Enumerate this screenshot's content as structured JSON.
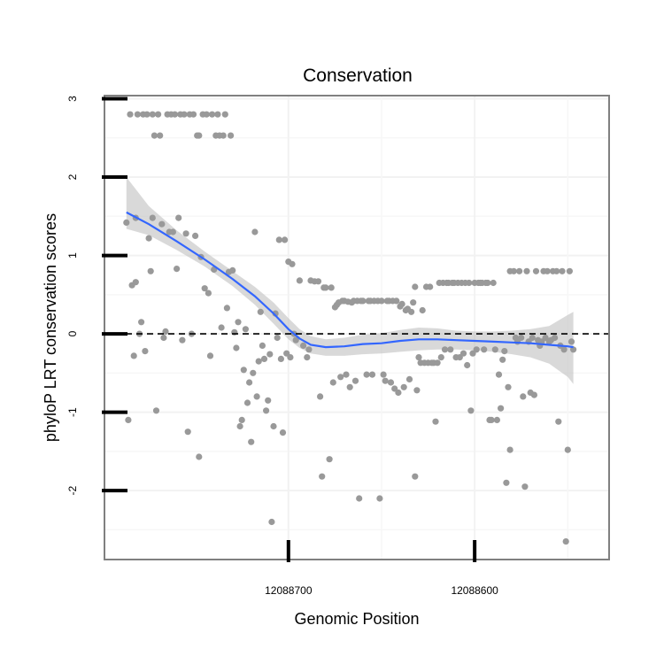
{
  "chart_data": {
    "type": "scatter",
    "title": "Conservation",
    "xlabel": "Genomic Position",
    "ylabel": "phyloP LRT conservation scores",
    "x_reversed": true,
    "xlim": [
      12088798.8,
      12088527.8
    ],
    "ylim": [
      -2.88,
      3.04
    ],
    "x_ticks": [
      12088700,
      12088600
    ],
    "x_tick_labels": [
      "12088700",
      "12088600"
    ],
    "y_ticks": [
      -2,
      -1,
      0,
      1,
      2,
      3
    ],
    "y_tick_labels": [
      "-2",
      "-1",
      "0",
      "1",
      "2",
      "3"
    ],
    "reference_line": {
      "y": 0,
      "style": "dashed"
    },
    "series": [
      {
        "name": "scores",
        "kind": "points",
        "points": [
          [
            12088787,
            1.42
          ],
          [
            12088786,
            -1.1
          ],
          [
            12088785,
            2.8
          ],
          [
            12088784,
            0.62
          ],
          [
            12088783,
            -0.28
          ],
          [
            12088782,
            0.66
          ],
          [
            12088782,
            1.48
          ],
          [
            12088781,
            2.8
          ],
          [
            12088780,
            0.0
          ],
          [
            12088779,
            0.15
          ],
          [
            12088778,
            2.8
          ],
          [
            12088777,
            -0.22
          ],
          [
            12088776,
            2.8
          ],
          [
            12088775,
            1.22
          ],
          [
            12088774,
            0.8
          ],
          [
            12088773,
            2.8
          ],
          [
            12088773,
            1.48
          ],
          [
            12088772,
            2.53
          ],
          [
            12088771,
            -0.98
          ],
          [
            12088770,
            2.8
          ],
          [
            12088769,
            2.53
          ],
          [
            12088768,
            1.4
          ],
          [
            12088767,
            -0.05
          ],
          [
            12088766,
            0.03
          ],
          [
            12088765,
            2.8
          ],
          [
            12088764,
            1.3
          ],
          [
            12088763,
            2.8
          ],
          [
            12088762,
            1.3
          ],
          [
            12088761,
            2.8
          ],
          [
            12088760,
            0.83
          ],
          [
            12088759,
            1.48
          ],
          [
            12088758,
            2.8
          ],
          [
            12088757,
            -0.08
          ],
          [
            12088756,
            2.8
          ],
          [
            12088755,
            1.28
          ],
          [
            12088754,
            -1.25
          ],
          [
            12088753,
            2.8
          ],
          [
            12088752,
            0.0
          ],
          [
            12088751,
            2.8
          ],
          [
            12088750,
            1.25
          ],
          [
            12088749,
            2.53
          ],
          [
            12088748,
            -1.57
          ],
          [
            12088748,
            2.53
          ],
          [
            12088747,
            0.98
          ],
          [
            12088746,
            2.8
          ],
          [
            12088745,
            0.58
          ],
          [
            12088744,
            2.8
          ],
          [
            12088743,
            0.52
          ],
          [
            12088742,
            -0.28
          ],
          [
            12088741,
            2.8
          ],
          [
            12088740,
            0.82
          ],
          [
            12088739,
            2.53
          ],
          [
            12088738,
            2.8
          ],
          [
            12088737,
            2.53
          ],
          [
            12088736,
            0.08
          ],
          [
            12088735,
            2.53
          ],
          [
            12088734,
            2.8
          ],
          [
            12088733,
            0.33
          ],
          [
            12088732,
            0.79
          ],
          [
            12088731,
            2.53
          ],
          [
            12088730,
            0.81
          ],
          [
            12088729,
            0.02
          ],
          [
            12088728,
            -0.18
          ],
          [
            12088727,
            0.15
          ],
          [
            12088726,
            -1.18
          ],
          [
            12088725,
            -1.1
          ],
          [
            12088724,
            -0.46
          ],
          [
            12088723,
            0.06
          ],
          [
            12088722,
            -0.88
          ],
          [
            12088721,
            -0.62
          ],
          [
            12088720,
            -1.38
          ],
          [
            12088719,
            -0.5
          ],
          [
            12088718,
            1.3
          ],
          [
            12088717,
            -0.8
          ],
          [
            12088716,
            -0.35
          ],
          [
            12088715,
            0.28
          ],
          [
            12088714,
            -0.15
          ],
          [
            12088713,
            -0.32
          ],
          [
            12088712,
            -0.98
          ],
          [
            12088711,
            -0.85
          ],
          [
            12088710,
            -0.26
          ],
          [
            12088709,
            -2.4
          ],
          [
            12088708,
            -1.18
          ],
          [
            12088707,
            0.26
          ],
          [
            12088706,
            -0.05
          ],
          [
            12088705,
            1.2
          ],
          [
            12088704,
            -0.32
          ],
          [
            12088703,
            -1.26
          ],
          [
            12088702,
            1.2
          ],
          [
            12088701,
            -0.25
          ],
          [
            12088700,
            0.92
          ],
          [
            12088699,
            -0.3
          ],
          [
            12088698,
            0.89
          ],
          [
            12088697,
            0.0
          ],
          [
            12088696,
            -0.08
          ],
          [
            12088694,
            0.68
          ],
          [
            12088692,
            -0.15
          ],
          [
            12088690,
            -0.3
          ],
          [
            12088689,
            -0.2
          ],
          [
            12088688,
            0.68
          ],
          [
            12088686,
            0.67
          ],
          [
            12088684,
            0.67
          ],
          [
            12088683,
            -0.8
          ],
          [
            12088682,
            -1.82
          ],
          [
            12088681,
            0.59
          ],
          [
            12088680,
            0.59
          ],
          [
            12088678,
            -1.6
          ],
          [
            12088677,
            0.59
          ],
          [
            12088676,
            -0.62
          ],
          [
            12088675,
            0.34
          ],
          [
            12088674,
            0.37
          ],
          [
            12088673,
            0.4
          ],
          [
            12088672,
            -0.55
          ],
          [
            12088671,
            0.42
          ],
          [
            12088670,
            0.42
          ],
          [
            12088669,
            -0.52
          ],
          [
            12088668,
            0.41
          ],
          [
            12088667,
            -0.68
          ],
          [
            12088666,
            0.4
          ],
          [
            12088665,
            0.42
          ],
          [
            12088664,
            -0.6
          ],
          [
            12088663,
            0.42
          ],
          [
            12088662,
            -2.1
          ],
          [
            12088661,
            0.42
          ],
          [
            12088660,
            0.42
          ],
          [
            12088658,
            -0.52
          ],
          [
            12088657,
            0.42
          ],
          [
            12088656,
            0.42
          ],
          [
            12088655,
            -0.52
          ],
          [
            12088654,
            0.42
          ],
          [
            12088652,
            0.42
          ],
          [
            12088651,
            -2.1
          ],
          [
            12088650,
            0.42
          ],
          [
            12088649,
            -0.52
          ],
          [
            12088648,
            -0.6
          ],
          [
            12088647,
            0.42
          ],
          [
            12088646,
            0.42
          ],
          [
            12088645,
            -0.62
          ],
          [
            12088644,
            0.42
          ],
          [
            12088643,
            -0.7
          ],
          [
            12088642,
            0.42
          ],
          [
            12088641,
            -0.75
          ],
          [
            12088640,
            0.35
          ],
          [
            12088639,
            0.38
          ],
          [
            12088638,
            -0.68
          ],
          [
            12088637,
            0.3
          ],
          [
            12088636,
            0.32
          ],
          [
            12088635,
            -0.58
          ],
          [
            12088634,
            0.28
          ],
          [
            12088633,
            0.4
          ],
          [
            12088632,
            -1.82
          ],
          [
            12088632,
            0.6
          ],
          [
            12088631,
            -0.72
          ],
          [
            12088630,
            -0.3
          ],
          [
            12088629,
            -0.37
          ],
          [
            12088628,
            0.3
          ],
          [
            12088627,
            -0.37
          ],
          [
            12088626,
            0.6
          ],
          [
            12088625,
            -0.37
          ],
          [
            12088624,
            0.6
          ],
          [
            12088623,
            -0.37
          ],
          [
            12088622,
            -0.37
          ],
          [
            12088621,
            -1.12
          ],
          [
            12088620,
            -0.37
          ],
          [
            12088619,
            0.65
          ],
          [
            12088618,
            -0.3
          ],
          [
            12088617,
            0.65
          ],
          [
            12088616,
            -0.2
          ],
          [
            12088615,
            0.65
          ],
          [
            12088614,
            0.65
          ],
          [
            12088613,
            -0.2
          ],
          [
            12088612,
            0.65
          ],
          [
            12088611,
            0.65
          ],
          [
            12088610,
            -0.3
          ],
          [
            12088609,
            0.65
          ],
          [
            12088608,
            -0.3
          ],
          [
            12088607,
            0.65
          ],
          [
            12088606,
            -0.25
          ],
          [
            12088605,
            0.65
          ],
          [
            12088604,
            -0.4
          ],
          [
            12088603,
            0.65
          ],
          [
            12088602,
            -0.98
          ],
          [
            12088601,
            -0.25
          ],
          [
            12088600,
            0.65
          ],
          [
            12088599,
            -0.2
          ],
          [
            12088598,
            0.65
          ],
          [
            12088597,
            0.65
          ],
          [
            12088596,
            0.65
          ],
          [
            12088595,
            -0.2
          ],
          [
            12088594,
            0.65
          ],
          [
            12088593,
            0.65
          ],
          [
            12088592,
            -1.1
          ],
          [
            12088591,
            -1.1
          ],
          [
            12088590,
            0.65
          ],
          [
            12088589,
            -0.2
          ],
          [
            12088588,
            -1.1
          ],
          [
            12088587,
            -0.52
          ],
          [
            12088586,
            -0.95
          ],
          [
            12088585,
            -0.33
          ],
          [
            12088584,
            -0.22
          ],
          [
            12088583,
            -1.9
          ],
          [
            12088582,
            -0.68
          ],
          [
            12088581,
            0.8
          ],
          [
            12088581,
            -1.48
          ],
          [
            12088579,
            0.8
          ],
          [
            12088578,
            -0.05
          ],
          [
            12088577,
            -0.1
          ],
          [
            12088576,
            0.8
          ],
          [
            12088575,
            -0.05
          ],
          [
            12088574,
            -0.8
          ],
          [
            12088573,
            -1.95
          ],
          [
            12088572,
            0.8
          ],
          [
            12088571,
            -0.1
          ],
          [
            12088570,
            -0.75
          ],
          [
            12088569,
            -0.05
          ],
          [
            12088568,
            -0.78
          ],
          [
            12088567,
            0.8
          ],
          [
            12088566,
            -0.08
          ],
          [
            12088565,
            -0.15
          ],
          [
            12088564,
            -0.1
          ],
          [
            12088563,
            0.8
          ],
          [
            12088562,
            -0.05
          ],
          [
            12088561,
            0.8
          ],
          [
            12088560,
            -0.1
          ],
          [
            12088559,
            -0.08
          ],
          [
            12088558,
            0.8
          ],
          [
            12088557,
            -0.05
          ],
          [
            12088556,
            0.8
          ],
          [
            12088555,
            -1.12
          ],
          [
            12088554,
            -0.15
          ],
          [
            12088553,
            0.8
          ],
          [
            12088552,
            -0.2
          ],
          [
            12088551,
            -2.65
          ],
          [
            12088550,
            -1.48
          ],
          [
            12088549,
            0.8
          ],
          [
            12088548,
            -0.1
          ],
          [
            12088547,
            -0.2
          ]
        ]
      },
      {
        "name": "loess fit",
        "kind": "line",
        "points": [
          [
            12088787,
            1.55
          ],
          [
            12088775,
            1.4
          ],
          [
            12088760,
            1.18
          ],
          [
            12088745,
            0.95
          ],
          [
            12088730,
            0.7
          ],
          [
            12088718,
            0.48
          ],
          [
            12088708,
            0.26
          ],
          [
            12088700,
            0.06
          ],
          [
            12088694,
            -0.06
          ],
          [
            12088688,
            -0.14
          ],
          [
            12088680,
            -0.17
          ],
          [
            12088670,
            -0.16
          ],
          [
            12088660,
            -0.13
          ],
          [
            12088650,
            -0.12
          ],
          [
            12088640,
            -0.09
          ],
          [
            12088630,
            -0.07
          ],
          [
            12088620,
            -0.07
          ],
          [
            12088610,
            -0.08
          ],
          [
            12088600,
            -0.09
          ],
          [
            12088590,
            -0.1
          ],
          [
            12088580,
            -0.11
          ],
          [
            12088570,
            -0.12
          ],
          [
            12088560,
            -0.14
          ],
          [
            12088550,
            -0.16
          ],
          [
            12088547,
            -0.17
          ]
        ]
      },
      {
        "name": "confidence band",
        "kind": "ribbon",
        "points": [
          [
            12088787,
            1.34,
            2.0
          ],
          [
            12088775,
            1.26,
            1.63
          ],
          [
            12088760,
            1.07,
            1.32
          ],
          [
            12088745,
            0.86,
            1.05
          ],
          [
            12088730,
            0.61,
            0.8
          ],
          [
            12088718,
            0.37,
            0.6
          ],
          [
            12088708,
            0.13,
            0.4
          ],
          [
            12088700,
            -0.07,
            0.2
          ],
          [
            12088694,
            -0.18,
            0.06
          ],
          [
            12088688,
            -0.25,
            -0.03
          ],
          [
            12088680,
            -0.28,
            -0.07
          ],
          [
            12088670,
            -0.28,
            -0.05
          ],
          [
            12088660,
            -0.26,
            -0.01
          ],
          [
            12088650,
            -0.25,
            0.01
          ],
          [
            12088640,
            -0.23,
            0.05
          ],
          [
            12088630,
            -0.21,
            0.08
          ],
          [
            12088620,
            -0.2,
            0.07
          ],
          [
            12088610,
            -0.2,
            0.04
          ],
          [
            12088600,
            -0.21,
            0.03
          ],
          [
            12088590,
            -0.23,
            0.03
          ],
          [
            12088580,
            -0.26,
            0.04
          ],
          [
            12088570,
            -0.3,
            0.06
          ],
          [
            12088560,
            -0.38,
            0.1
          ],
          [
            12088550,
            -0.55,
            0.24
          ],
          [
            12088547,
            -0.64,
            0.28
          ]
        ]
      }
    ]
  },
  "colors": {
    "points": "#999999",
    "fit_line": "#3366ff",
    "band": "#bfbfbf",
    "panel_border": "#808080"
  }
}
